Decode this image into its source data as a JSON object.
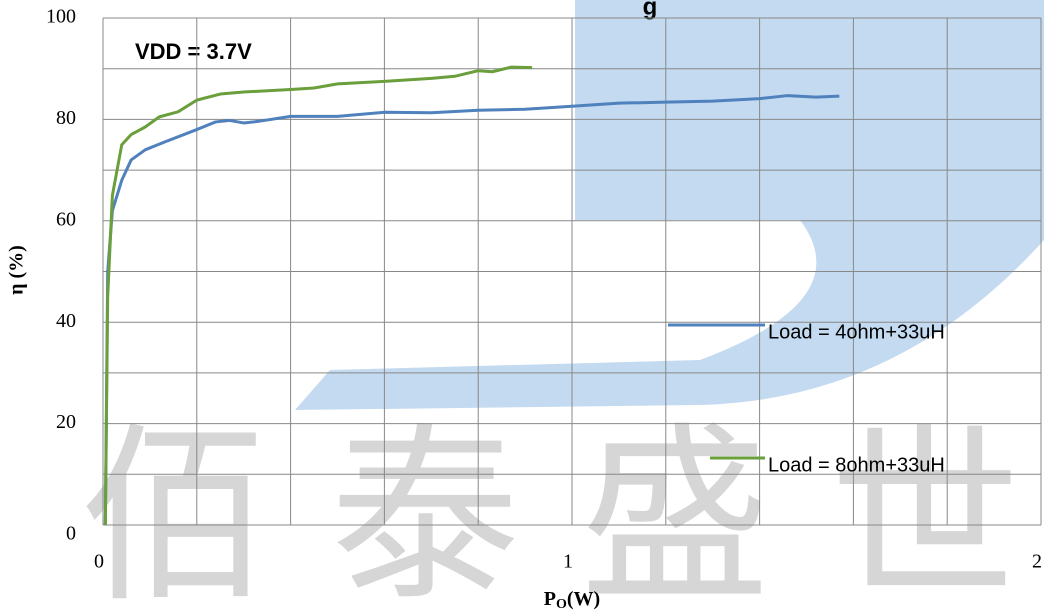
{
  "chart_data": {
    "type": "line",
    "title": "g",
    "annotation": "VDD = 3.7V",
    "watermark": "佰泰盛世",
    "xlabel": [
      "P",
      "O",
      "(W)"
    ],
    "ylabel": "η (%)",
    "xlim": [
      0,
      2
    ],
    "ylim": [
      0,
      100
    ],
    "xticks": [
      0,
      1,
      2
    ],
    "yticks": [
      0,
      20,
      40,
      60,
      80,
      100
    ],
    "xgrid": [
      0.2,
      0.4,
      0.6,
      0.8,
      1,
      1.2,
      1.4,
      1.6,
      1.8,
      2
    ],
    "ygrid": [
      10,
      20,
      30,
      40,
      50,
      60,
      70,
      80,
      90,
      100
    ],
    "series": [
      {
        "name": "Load = 4ohm+33uH",
        "color": "#4f81bd",
        "x": [
          0.005,
          0.01,
          0.02,
          0.04,
          0.06,
          0.09,
          0.13,
          0.2,
          0.24,
          0.27,
          0.3,
          0.33,
          0.4,
          0.5,
          0.6,
          0.7,
          0.8,
          0.9,
          1.0,
          1.1,
          1.2,
          1.3,
          1.4,
          1.46,
          1.52,
          1.57
        ],
        "values": [
          0,
          50,
          62,
          68,
          72,
          74,
          75.5,
          78,
          79.5,
          79.8,
          79.3,
          79.6,
          80.6,
          80.6,
          81.4,
          81.3,
          81.8,
          82,
          82.6,
          83.2,
          83.4,
          83.6,
          84.1,
          84.7,
          84.4,
          84.6
        ]
      },
      {
        "name": "Load = 8ohm+33uH",
        "color": "#6a9f3c",
        "x": [
          0.005,
          0.01,
          0.02,
          0.04,
          0.06,
          0.09,
          0.12,
          0.16,
          0.2,
          0.25,
          0.3,
          0.4,
          0.45,
          0.5,
          0.6,
          0.7,
          0.75,
          0.8,
          0.83,
          0.87,
          0.915
        ],
        "values": [
          0,
          45,
          65,
          75,
          77,
          78.5,
          80.5,
          81.5,
          83.8,
          85,
          85.4,
          85.9,
          86.2,
          87,
          87.5,
          88.1,
          88.5,
          89.6,
          89.4,
          90.3,
          90.2
        ]
      }
    ]
  }
}
